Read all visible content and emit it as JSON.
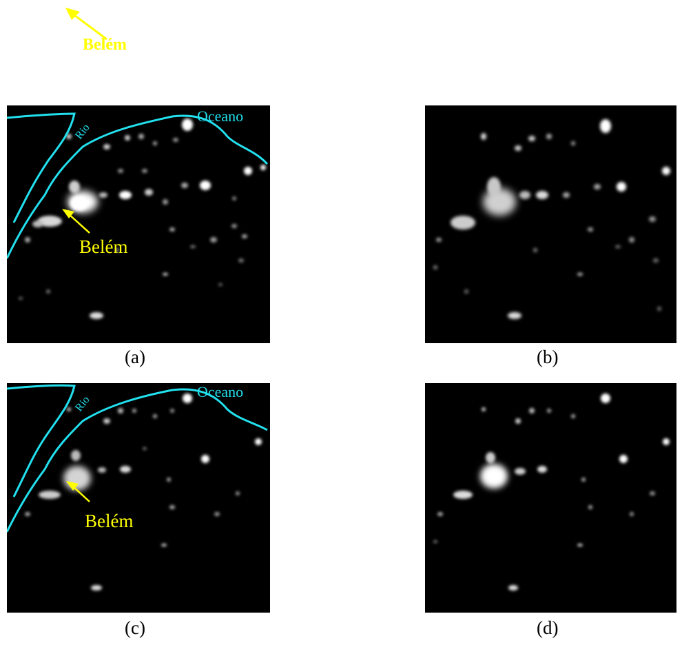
{
  "top_annotation": {
    "label": "Belém"
  },
  "panels": [
    {
      "caption": "(a)",
      "labels": {
        "ocean": "Oceano",
        "river": "Rio",
        "city": "Belém"
      }
    },
    {
      "caption": "(b)"
    },
    {
      "caption": "(c)",
      "labels": {
        "ocean": "Oceano",
        "river": "Rio",
        "city": "Belém"
      }
    },
    {
      "caption": "(d)"
    }
  ],
  "colors": {
    "coast_line": "#22e0ee",
    "annotation": "#ffff00",
    "background": "#000000",
    "lights": "#ffffff"
  }
}
